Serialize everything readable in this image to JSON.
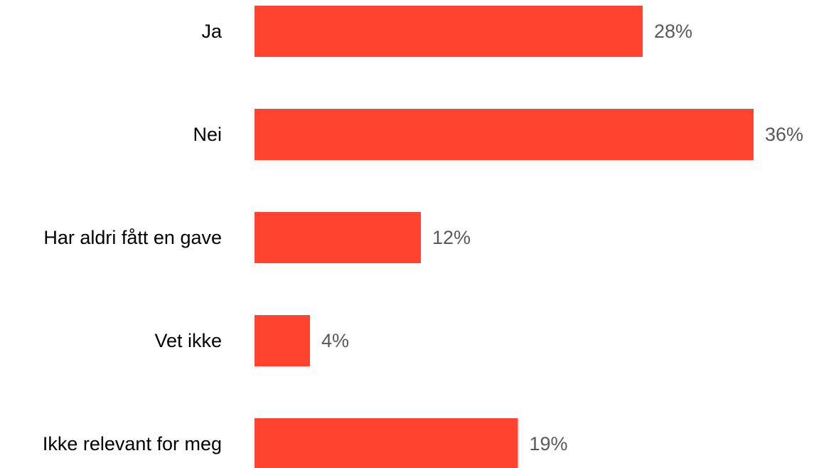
{
  "chart_data": {
    "type": "bar",
    "orientation": "horizontal",
    "title": "",
    "xlabel": "",
    "ylabel": "",
    "categories": [
      "Ja",
      "Nei",
      "Har aldri fått en gave",
      "Vet ikke",
      "Ikke relevant for meg"
    ],
    "values": [
      28,
      36,
      12,
      4,
      19
    ],
    "value_labels": [
      "28%",
      "36%",
      "12%",
      "4%",
      "19%"
    ],
    "unit": "%",
    "xlim": [
      0,
      36
    ],
    "grid": false,
    "legend": "none",
    "bar_color": "#FF432E",
    "label_color": "#000000",
    "value_label_color": "#595959"
  }
}
